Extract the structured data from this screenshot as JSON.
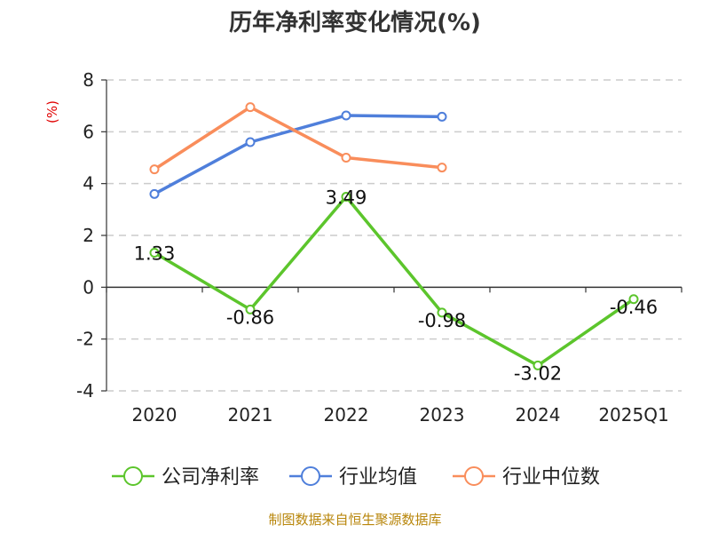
{
  "chart_data": {
    "type": "line",
    "title": "历年净利率变化情况(%)",
    "ylabel": "(%)",
    "xlabel": "",
    "categories": [
      "2020",
      "2021",
      "2022",
      "2023",
      "2024",
      "2025Q1"
    ],
    "ylim": [
      -4,
      8
    ],
    "yticks": [
      -4,
      -2,
      0,
      2,
      4,
      6,
      8
    ],
    "grid": true,
    "legend_position": "bottom",
    "series": [
      {
        "name": "公司净利率",
        "color": "#5cc52c",
        "values": [
          1.33,
          -0.86,
          3.49,
          -0.98,
          -3.02,
          -0.46
        ],
        "show_labels": true
      },
      {
        "name": "行业均值",
        "color": "#4f7fdb",
        "values": [
          3.6,
          5.6,
          6.63,
          6.58,
          null,
          null
        ],
        "show_labels": false
      },
      {
        "name": "行业中位数",
        "color": "#f98d5b",
        "values": [
          4.55,
          6.95,
          5.0,
          4.62,
          null,
          null
        ],
        "show_labels": false
      }
    ]
  },
  "source_text": "制图数据来自恒生聚源数据库"
}
